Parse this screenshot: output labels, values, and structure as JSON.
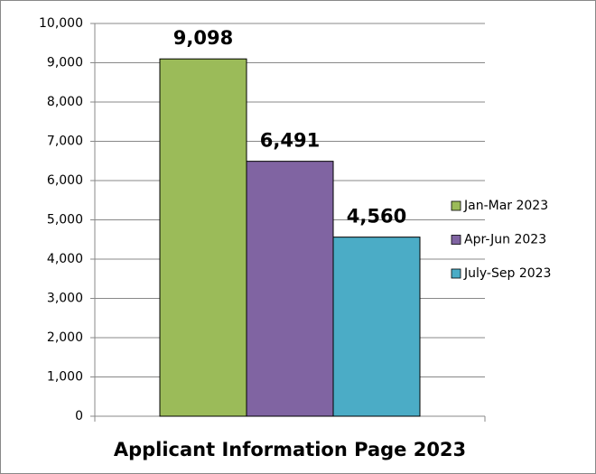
{
  "chart_data": {
    "type": "bar",
    "title": "Applicant Information Page 2023",
    "categories": [
      null
    ],
    "series": [
      {
        "name": "Jan-Mar 2023",
        "color": "#9bbb59",
        "values": [
          9098
        ],
        "value_labels": [
          "9,098"
        ]
      },
      {
        "name": "Apr-Jun 2023",
        "color": "#8064a2",
        "values": [
          6491
        ],
        "value_labels": [
          "6,491"
        ]
      },
      {
        "name": "July-Sep 2023",
        "color": "#4bacc6",
        "values": [
          4560
        ],
        "value_labels": [
          "4,560"
        ]
      }
    ],
    "ylim": [
      0,
      10000
    ],
    "yticks": [
      0,
      {
        "value": 1000,
        "label": "1,000"
      },
      {
        "value": 2000,
        "label": "2,000"
      },
      {
        "value": 3000,
        "label": "3,000"
      },
      {
        "value": 4000,
        "label": "4,000"
      },
      {
        "value": 5000,
        "label": "5,000"
      },
      {
        "value": 6000,
        "label": "6,000"
      },
      {
        "value": 7000,
        "label": "7,000"
      },
      {
        "value": 8000,
        "label": "8,000"
      },
      {
        "value": 9000,
        "label": "9,000"
      },
      {
        "value": 10000,
        "label": "10,000"
      }
    ],
    "grid": true,
    "legend": "right"
  }
}
